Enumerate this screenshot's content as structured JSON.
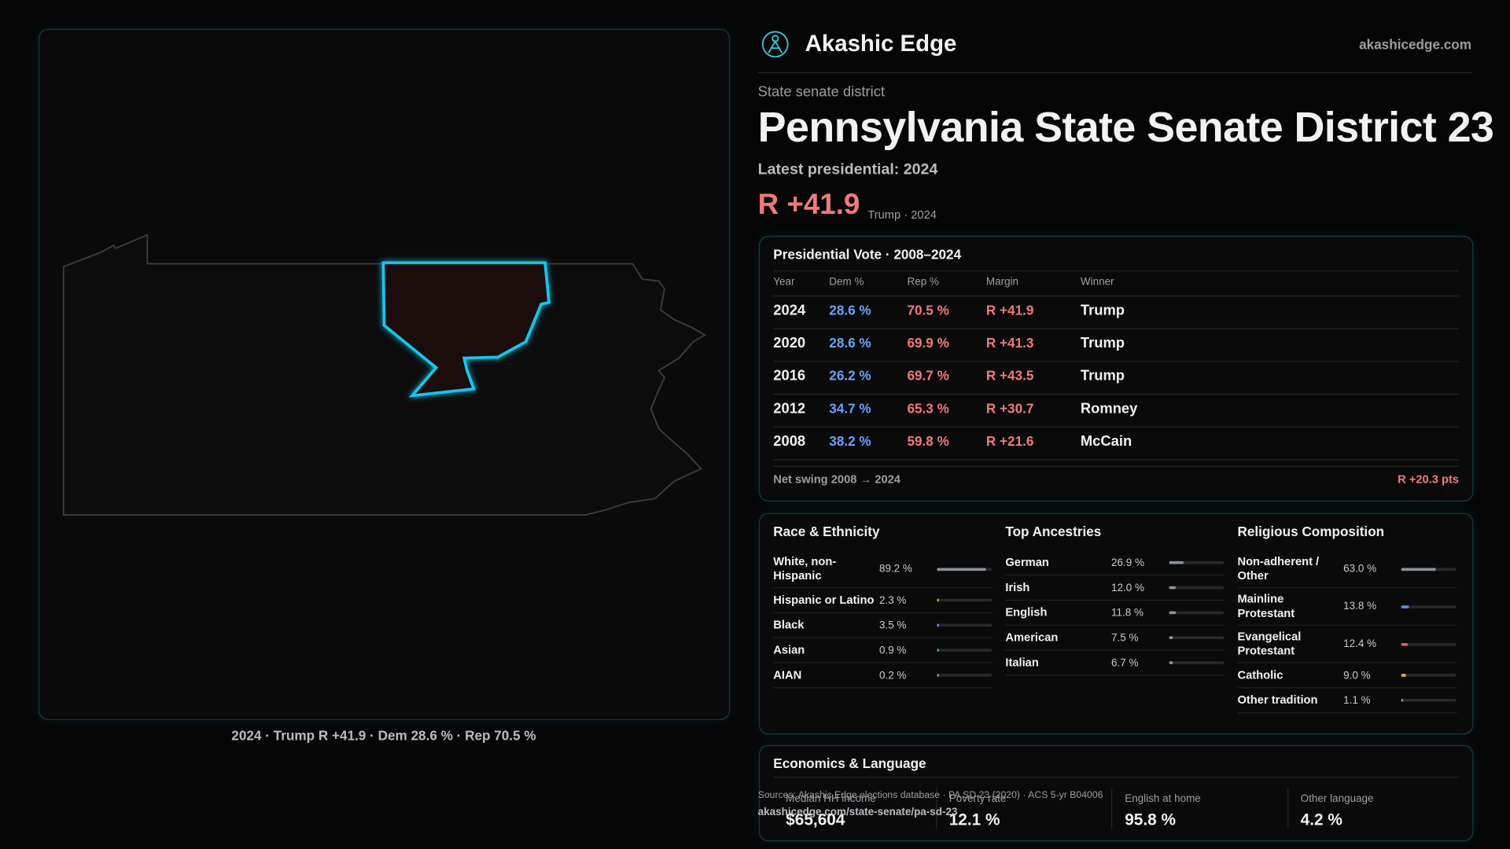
{
  "brand": {
    "name": "Akashic Edge",
    "url": "akashicedge.com"
  },
  "header": {
    "kicker": "State senate district",
    "title": "Pennsylvania State Senate District 23",
    "latest": "Latest presidential: 2024",
    "margin": "R +41.9",
    "margin_note": "Trump · 2024"
  },
  "map": {
    "caption": "2024 · Trump R +41.9 · Dem 28.6 % · Rep 70.5 %"
  },
  "presidential": {
    "title": "Presidential Vote · 2008–2024",
    "columns": [
      "Year",
      "Dem %",
      "Rep %",
      "Margin",
      "Winner"
    ],
    "rows": [
      [
        "2024",
        "28.6 %",
        "70.5 %",
        "R +41.9",
        "Trump"
      ],
      [
        "2020",
        "28.6 %",
        "69.9 %",
        "R +41.3",
        "Trump"
      ],
      [
        "2016",
        "26.2 %",
        "69.7 %",
        "R +43.5",
        "Trump"
      ],
      [
        "2012",
        "34.7 %",
        "65.3 %",
        "R +30.7",
        "Romney"
      ],
      [
        "2008",
        "38.2 %",
        "59.8 %",
        "R +21.6",
        "McCain"
      ]
    ],
    "footer_label": "Net swing 2008 → 2024",
    "footer_value": "R +20.3 pts"
  },
  "panels": [
    {
      "title": "Race & Ethnicity",
      "items": [
        {
          "name": "White, non-Hispanic",
          "value": 89.2,
          "label": "89.2 %",
          "color": "#8a939c"
        },
        {
          "name": "Hispanic or Latino",
          "value": 2.3,
          "label": "2.3 %",
          "color": "#e0a030"
        },
        {
          "name": "Black",
          "value": 3.5,
          "label": "3.5 %",
          "color": "#8f7de0"
        },
        {
          "name": "Asian",
          "value": 0.9,
          "label": "0.9 %",
          "color": "#3fb58a"
        },
        {
          "name": "AIAN",
          "value": 0.2,
          "label": "0.2 %",
          "color": "#8a939c"
        }
      ]
    },
    {
      "title": "Top Ancestries",
      "items": [
        {
          "name": "German",
          "value": 26.9,
          "label": "26.9 %",
          "color": "#8a939c"
        },
        {
          "name": "Irish",
          "value": 12.0,
          "label": "12.0 %",
          "color": "#8a939c"
        },
        {
          "name": "English",
          "value": 11.8,
          "label": "11.8 %",
          "color": "#8a939c"
        },
        {
          "name": "American",
          "value": 7.5,
          "label": "7.5 %",
          "color": "#8a939c"
        },
        {
          "name": "Italian",
          "value": 6.7,
          "label": "6.7 %",
          "color": "#8a939c"
        }
      ]
    },
    {
      "title": "Religious Composition",
      "items": [
        {
          "name": "Non-adherent / Other",
          "value": 63.0,
          "label": "63.0 %",
          "color": "#8a939c"
        },
        {
          "name": "Mainline Protestant",
          "value": 13.8,
          "label": "13.8 %",
          "color": "#5b8de6"
        },
        {
          "name": "Evangelical Protestant",
          "value": 12.4,
          "label": "12.4 %",
          "color": "#e06060"
        },
        {
          "name": "Catholic",
          "value": 9.0,
          "label": "9.0 %",
          "color": "#e0b030"
        },
        {
          "name": "Other tradition",
          "value": 1.1,
          "label": "1.1 %",
          "color": "#8a939c"
        }
      ]
    }
  ],
  "economics": {
    "title": "Economics & Language",
    "items": [
      {
        "label": "Median HH income",
        "value": "$65,604"
      },
      {
        "label": "Poverty rate",
        "value": "12.1 %"
      },
      {
        "label": "English at home",
        "value": "95.8 %"
      },
      {
        "label": "Other language",
        "value": "4.2 %"
      }
    ]
  },
  "footer": {
    "sources": "Sources: Akashic Edge elections database · PA SD 23 (2020) · ACS 5-yr B04006",
    "url": "akashicedge.com/state-senate/pa-sd-23"
  }
}
